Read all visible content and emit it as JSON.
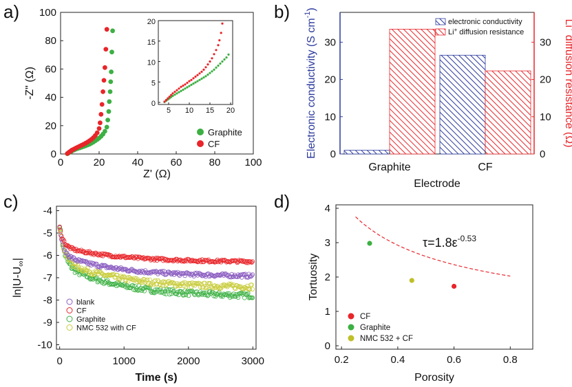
{
  "panel_labels": [
    "a)",
    "b)",
    "c)",
    "d)"
  ],
  "colors": {
    "green": "#3cb043",
    "red": "#e8252a",
    "blue": "#2b3a9c",
    "purple": "#8a5cc0",
    "yellowgreen": "#c8cc3a",
    "nmc_dot": "#bfbf2a"
  },
  "chart_data": [
    {
      "panel": "a)",
      "type": "scatter",
      "xlabel": "Z' (Ω)",
      "ylabel": "-Z\" (Ω)",
      "xlim": [
        0,
        100
      ],
      "ylim": [
        0,
        100
      ],
      "xticks": [
        "0",
        "20",
        "40",
        "60",
        "80",
        "100"
      ],
      "yticks": [
        "0",
        "20",
        "40",
        "60",
        "80",
        "100"
      ],
      "legend_position": "bottom-right",
      "series": [
        {
          "name": "Graphite",
          "color": "#3cb043",
          "x": [
            3.5,
            4,
            4.5,
            5,
            5.5,
            6,
            7,
            8,
            9,
            10,
            11,
            12,
            13,
            14,
            15,
            16,
            17,
            18,
            19,
            20,
            21,
            22,
            23,
            24,
            24.5,
            25,
            25.3,
            25.7,
            26,
            26.3,
            26.6,
            27
          ],
          "y": [
            0.2,
            0.6,
            1,
            1.4,
            1.8,
            2.2,
            2.8,
            3.4,
            3.9,
            4.3,
            4.8,
            5.3,
            5.8,
            6.3,
            6.9,
            7.6,
            8.4,
            9.3,
            10.2,
            11.2,
            12.5,
            14,
            16,
            19,
            24,
            30,
            37,
            44,
            51,
            58,
            72,
            87
          ]
        },
        {
          "name": "CF",
          "color": "#e8252a",
          "x": [
            3.5,
            4,
            4.5,
            5,
            5.5,
            6,
            7,
            8,
            9,
            10,
            11,
            12,
            13,
            14,
            15,
            16,
            17,
            18,
            19,
            20,
            20.5,
            21,
            21.5,
            22,
            22.5,
            23,
            23.5,
            24
          ],
          "y": [
            0.3,
            0.8,
            1.3,
            1.8,
            2.3,
            2.8,
            3.5,
            4.2,
            4.9,
            5.6,
            6.2,
            6.9,
            7.6,
            8.4,
            9.3,
            10.3,
            11.5,
            13,
            15,
            18,
            22,
            28,
            35,
            44,
            52,
            61,
            74,
            88
          ]
        }
      ],
      "inset": {
        "xlim": [
          2.5,
          20.5
        ],
        "ylim": [
          -0.5,
          20
        ],
        "xticks": [
          "5",
          "10",
          "15",
          "20"
        ],
        "yticks": [
          "0",
          "5",
          "10",
          "15",
          "20"
        ],
        "series": [
          {
            "name": "Graphite",
            "color": "#3cb043",
            "x": [
              4,
              4.4,
              4.8,
              5.2,
              5.6,
              6,
              6.5,
              7,
              7.5,
              8,
              8.5,
              9,
              9.5,
              10,
              10.5,
              11,
              11.5,
              12,
              12.5,
              13,
              13.5,
              14,
              14.5,
              15,
              15.5,
              16,
              16.5,
              17,
              17.5,
              18,
              18.5,
              19,
              19.5
            ],
            "y": [
              0.1,
              0.4,
              0.7,
              1,
              1.3,
              1.6,
              1.9,
              2.2,
              2.5,
              2.8,
              3.1,
              3.4,
              3.7,
              4,
              4.3,
              4.6,
              4.9,
              5.2,
              5.5,
              5.8,
              6.1,
              6.4,
              6.8,
              7.2,
              7.6,
              8,
              8.5,
              9,
              9.5,
              10,
              10.5,
              11,
              11.7
            ]
          },
          {
            "name": "CF",
            "color": "#e8252a",
            "x": [
              4,
              4.4,
              4.8,
              5.2,
              5.6,
              6,
              6.5,
              7,
              7.5,
              8,
              8.5,
              9,
              9.5,
              10,
              10.5,
              11,
              11.5,
              12,
              12.5,
              13,
              13.5,
              14,
              14.5,
              15,
              15.5,
              16,
              16.5,
              17,
              17.3,
              17.7,
              18
            ],
            "y": [
              0.2,
              0.6,
              1,
              1.4,
              1.8,
              2.2,
              2.6,
              3,
              3.4,
              3.8,
              4.1,
              4.4,
              4.8,
              5.2,
              5.5,
              5.9,
              6.3,
              6.7,
              7.1,
              7.5,
              8,
              8.6,
              9.3,
              10,
              10.8,
              11.8,
              12.8,
              14,
              15.2,
              17,
              19.3
            ]
          }
        ]
      }
    },
    {
      "panel": "b)",
      "type": "bar",
      "xlabel": "Electrode",
      "ylabel": "Electronic conductivity (S cm",
      "ylabel_sup": "-1",
      "ylabel_close": ")",
      "y2label_pre": "Li",
      "y2label_sup": "+",
      "y2label": " diffusion resistance (Ω)",
      "categories": [
        "Graphite",
        "CF"
      ],
      "ylim": [
        0,
        38
      ],
      "yticks": [
        "0",
        "10",
        "20",
        "30"
      ],
      "y2ticks": [
        "0",
        "10",
        "20",
        "30"
      ],
      "legend_position": "top-right",
      "series": [
        {
          "name": "electronic conductivity",
          "color": "#2b3a9c",
          "axis": "left",
          "values": [
            1,
            26.5
          ]
        },
        {
          "name_pre": "Li",
          "name_sup": "+",
          "name": " diffusion resistance",
          "color": "#e8252a",
          "axis": "right",
          "values": [
            33.5,
            22.3
          ]
        }
      ]
    },
    {
      "panel": "c)",
      "type": "scatter",
      "xlabel": "Time (s)",
      "ylabel": "ln|U-U",
      "ylabel_sub": "∞",
      "ylabel_close": "|",
      "xlim": [
        -50,
        3050
      ],
      "ylim": [
        -10.2,
        -3.8
      ],
      "xticks": [
        "0",
        "1000",
        "2000",
        "3000"
      ],
      "yticks": [
        "-4",
        "-5",
        "-6",
        "-7",
        "-8",
        "-9",
        "-10"
      ],
      "legend_position": "bottom-left",
      "series": [
        {
          "name": "blank",
          "color": "#8a5cc0",
          "model": {
            "start": -4.8,
            "a": 0.8,
            "tau": 60,
            "end": -6.95,
            "noise": 0.08
          }
        },
        {
          "name": "CF",
          "color": "#e8252a",
          "model": {
            "start": -4.75,
            "a": 0.85,
            "tau": 60,
            "end": -6.3,
            "noise": 0.06
          }
        },
        {
          "name": "Graphite",
          "color": "#3cb043",
          "model": {
            "start": -4.6,
            "a": 1.4,
            "tau": 70,
            "end": -7.85,
            "noise": 0.12
          }
        },
        {
          "name": "NMC 532 with CF",
          "color": "#c8cc3a",
          "model": {
            "start": -4.7,
            "a": 1.3,
            "tau": 70,
            "end": -7.45,
            "noise": 0.12
          }
        }
      ]
    },
    {
      "panel": "d)",
      "type": "scatter",
      "xlabel": "Porosity",
      "ylabel": "Tortuosity",
      "xlim": [
        0.18,
        0.88
      ],
      "ylim": [
        -0.1,
        4.1
      ],
      "xticks": [
        "0.2",
        "0.4",
        "0.6",
        "0.8"
      ],
      "yticks": [
        "0",
        "1",
        "2",
        "3",
        "4"
      ],
      "legend_position": "bottom-left",
      "annotation": {
        "base": "τ=1.8ε",
        "sup": "-0.53"
      },
      "fit": {
        "a": 1.8,
        "b": -0.53,
        "x_from": 0.25,
        "x_to": 0.8,
        "color": "#e8252a"
      },
      "series": [
        {
          "name": "CF",
          "color": "#e8252a",
          "x": [
            0.6
          ],
          "y": [
            1.73
          ]
        },
        {
          "name": "Graphite",
          "color": "#3cb043",
          "x": [
            0.3
          ],
          "y": [
            2.98
          ]
        },
        {
          "name": "NMC 532 + CF",
          "color": "#bfbf2a",
          "x": [
            0.45
          ],
          "y": [
            1.9
          ]
        }
      ]
    }
  ]
}
